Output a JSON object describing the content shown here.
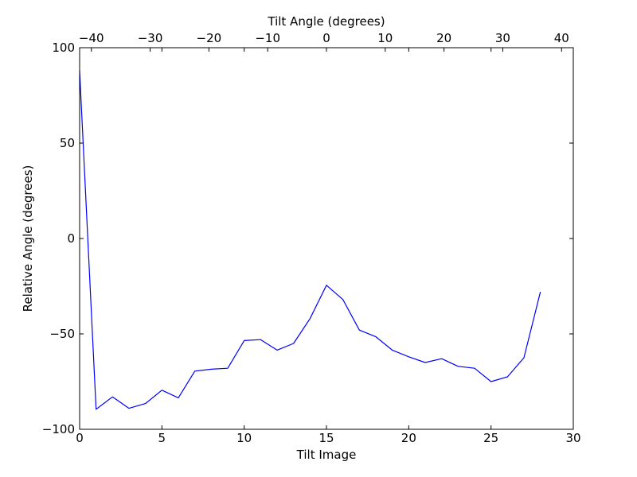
{
  "chart_data": {
    "type": "line",
    "xlabel": "Tilt Image",
    "ylabel": "Relative Angle (degrees)",
    "x2label": "Tilt Angle (degrees)",
    "xlim": [
      0,
      30
    ],
    "ylim": [
      -100,
      100
    ],
    "x2lim": [
      -42,
      42
    ],
    "xticks": [
      0,
      5,
      10,
      15,
      20,
      25,
      30
    ],
    "xtick_labels": [
      "0",
      "5",
      "10",
      "15",
      "20",
      "25",
      "30"
    ],
    "yticks": [
      -100,
      -50,
      0,
      50,
      100
    ],
    "ytick_labels": [
      "−100",
      "−50",
      "0",
      "50",
      "100"
    ],
    "x2ticks": [
      -40,
      -30,
      -20,
      -10,
      0,
      10,
      20,
      30,
      40
    ],
    "x2tick_labels": [
      "−40",
      "−30",
      "−20",
      "−10",
      "0",
      "10",
      "20",
      "30",
      "40"
    ],
    "grid": false,
    "line_color": "#0000ff",
    "series": [
      {
        "x": [
          0,
          1,
          2,
          3,
          4,
          5,
          6,
          7,
          8,
          9,
          10,
          11,
          12,
          13,
          14,
          15,
          16,
          17,
          18,
          19,
          20,
          21,
          22,
          23,
          24,
          25,
          26,
          27,
          28
        ],
        "values": [
          88,
          -89.5,
          -83,
          -89,
          -86.5,
          -79.5,
          -83.5,
          -69.5,
          -68.5,
          -68,
          -53.5,
          -53,
          -58.5,
          -55,
          -42,
          -24.5,
          -32,
          -48,
          -51.5,
          -58.5,
          -62,
          -65,
          -63,
          -67,
          -68,
          -75,
          -72.5,
          -62.5,
          -28
        ]
      }
    ]
  }
}
